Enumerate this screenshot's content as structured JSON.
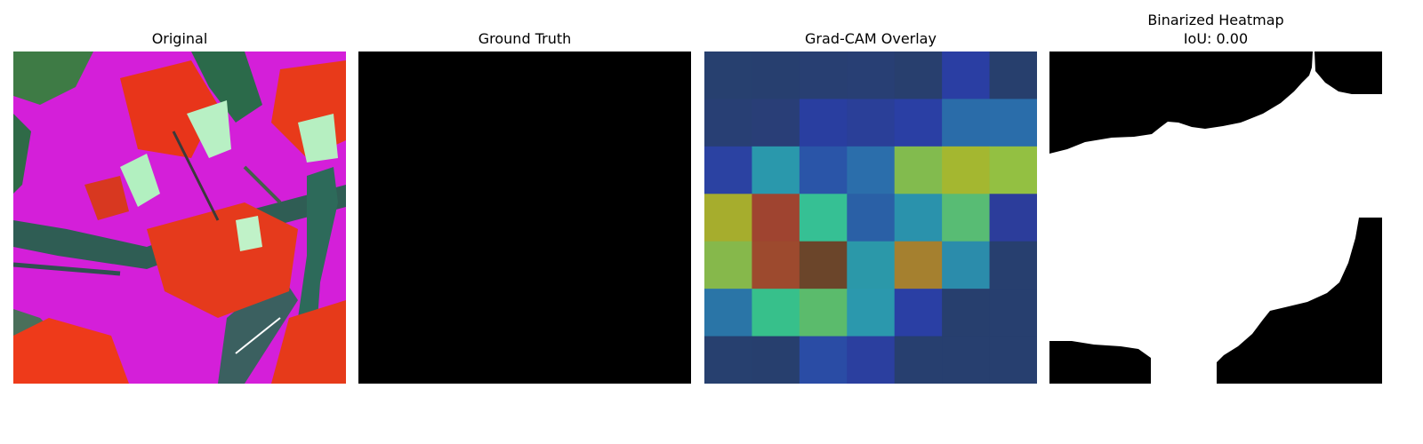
{
  "figure": {
    "panels": [
      {
        "title": "Original"
      },
      {
        "title": "Ground Truth"
      },
      {
        "title": "Grad-CAM Overlay"
      },
      {
        "title": "Binarized Heatmap",
        "subtitle": "IoU: 0.00"
      }
    ]
  },
  "gradcam": {
    "grid_size": 7,
    "cells": [
      [
        "#27406f",
        "#273f6f",
        "#283f72",
        "#283f74",
        "#283f6e",
        "#2a3ea3",
        "#273f6d"
      ],
      [
        "#283f74",
        "#293e77",
        "#293ea0",
        "#2a3f98",
        "#2a3fa4",
        "#2a6ca9",
        "#2a6daa"
      ],
      [
        "#2b42a2",
        "#2a98ac",
        "#2a55a8",
        "#2b6eab",
        "#82bb4e",
        "#a4b730",
        "#93c042"
      ],
      [
        "#a6ad2d",
        "#9f4430",
        "#36c094",
        "#2a60a6",
        "#2a92ac",
        "#58bc74",
        "#2c3d9b"
      ],
      [
        "#86b84b",
        "#9d4a2e",
        "#6b452a",
        "#2b98a9",
        "#a5802f",
        "#2b8cab",
        "#273f6f"
      ],
      [
        "#2a75a7",
        "#37c08b",
        "#5bbb6c",
        "#2b98ad",
        "#2a3fa4",
        "#273f6e",
        "#273f6f"
      ],
      [
        "#27406f",
        "#273f6e",
        "#2a4ca5",
        "#2b3f9f",
        "#273f6f",
        "#273f6f",
        "#273f6f"
      ]
    ]
  }
}
